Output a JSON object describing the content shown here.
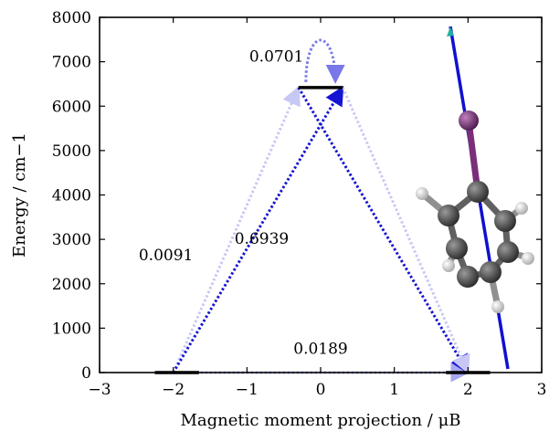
{
  "chart_data": {
    "type": "line",
    "xlabel": "Magnetic moment projection / μB",
    "ylabel": "Energy / cm−1",
    "xlim": [
      -3,
      3
    ],
    "ylim": [
      0,
      8000
    ],
    "x_ticks": [
      -3,
      -2,
      -1,
      0,
      1,
      2,
      3
    ],
    "x_tick_labels": [
      "−3",
      "−2",
      "−1",
      "0",
      "1",
      "2",
      "3"
    ],
    "y_ticks": [
      0,
      1000,
      2000,
      3000,
      4000,
      5000,
      6000,
      7000,
      8000
    ],
    "y_tick_labels": [
      "0",
      "1000",
      "2000",
      "3000",
      "4000",
      "5000",
      "6000",
      "7000",
      "8000"
    ],
    "grid": false,
    "levels": [
      {
        "x": [
          -2.25,
          -1.65
        ],
        "y": 0
      },
      {
        "x": [
          -0.3,
          0.3
        ],
        "y": 6420
      },
      {
        "x": [
          1.7,
          2.3
        ],
        "y": 0
      }
    ],
    "transitions": [
      {
        "from": [
          -2.0,
          0
        ],
        "to": [
          2.0,
          0
        ],
        "value": 0.0189,
        "label": "0.0189",
        "color": "#a7a8f0"
      },
      {
        "from": [
          -2.0,
          0
        ],
        "to": [
          -0.3,
          6420
        ],
        "value": 0.0091,
        "label": "0.0091",
        "color": "#c8c8f4"
      },
      {
        "from": [
          -2.0,
          0
        ],
        "to": [
          0.3,
          6420
        ],
        "value": 0.6939,
        "label": "0.6939",
        "color": "#1414d2"
      },
      {
        "from": [
          -0.3,
          6420
        ],
        "to": [
          2.0,
          0
        ],
        "value": 0.6939,
        "color": "#1414d2"
      },
      {
        "from": [
          0.3,
          6420
        ],
        "to": [
          2.0,
          0
        ],
        "value": 0.0091,
        "color": "#c8c8f4"
      },
      {
        "from": [
          -0.2,
          6420
        ],
        "to": [
          0.2,
          6420
        ],
        "value": 0.0701,
        "label": "0.0701",
        "color": "#7878e8",
        "loop": true
      }
    ],
    "colors": {
      "level": "#000000",
      "axis_vector": "#1010d0",
      "carbon": "#555555",
      "hydrogen": "#d8d8d8",
      "iodine": "#7a2f78"
    }
  }
}
